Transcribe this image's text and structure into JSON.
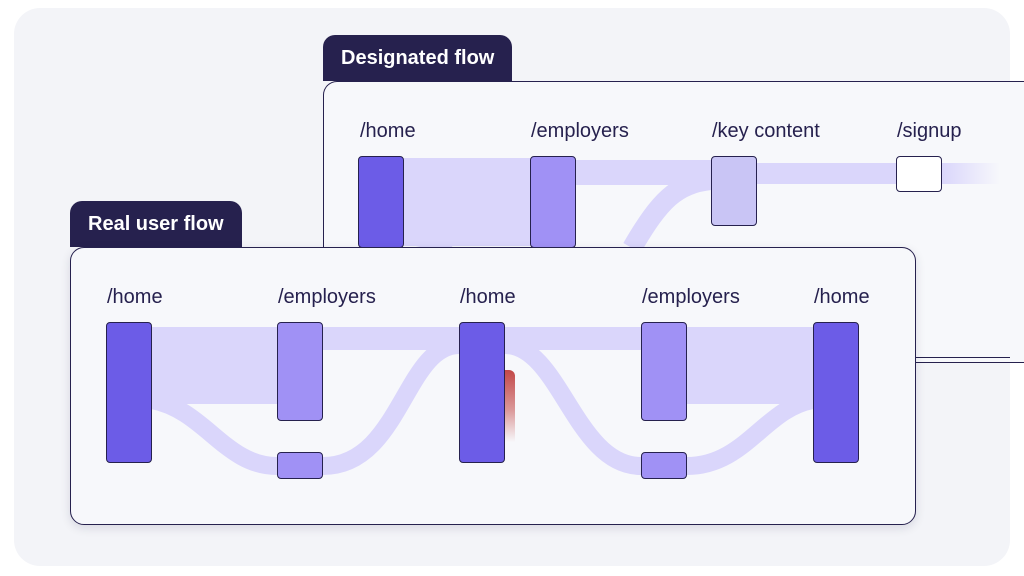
{
  "designated_flow": {
    "tab_label": "Designated flow",
    "steps": [
      "/home",
      "/employers",
      "/key content",
      "/signup"
    ]
  },
  "real_user_flow": {
    "tab_label": "Real user flow",
    "steps": [
      "/home",
      "/employers",
      "/home",
      "/employers",
      "/home"
    ]
  },
  "colors": {
    "panel_border": "#26214e",
    "node_dark": "#6c5ce7",
    "node_mid": "#a091f5",
    "node_light": "#c9c5f5",
    "flow": "#dad6fb",
    "drop_off": "#c24848"
  }
}
